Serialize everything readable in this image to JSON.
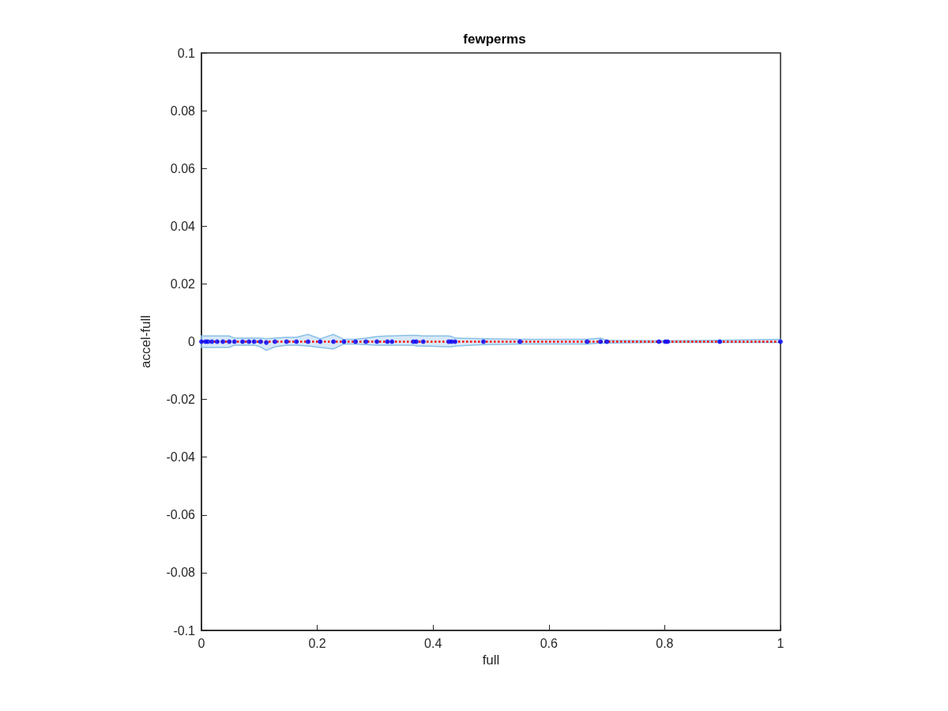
{
  "chart_data": {
    "type": "scatter",
    "title": "fewperms",
    "xlabel": "full",
    "ylabel": "accel-full",
    "x": [
      0,
      0.007,
      0.011,
      0.018,
      0.027,
      0.037,
      0.048,
      0.057,
      0.071,
      0.082,
      0.091,
      0.102,
      0.112,
      0.127,
      0.147,
      0.164,
      0.184,
      0.205,
      0.228,
      0.246,
      0.266,
      0.284,
      0.303,
      0.321,
      0.329,
      0.366,
      0.371,
      0.383,
      0.427,
      0.432,
      0.438,
      0.487,
      0.55,
      0.666,
      0.689,
      0.7,
      0.79,
      0.801,
      0.805,
      0.895,
      1
    ],
    "series": [
      {
        "color": "#0000ff",
        "values": [
          0,
          0,
          0,
          0,
          0,
          0,
          0,
          0,
          0,
          0,
          0,
          0,
          -0.0003,
          0,
          0,
          0,
          0,
          0,
          0,
          0,
          0,
          0,
          0,
          0,
          0,
          0,
          0,
          0,
          0,
          0,
          0,
          0,
          0,
          0,
          0,
          0,
          0,
          0,
          0,
          0,
          0
        ],
        "upper": [
          0.002,
          0.002,
          0.002,
          0.002,
          0.002,
          0.002,
          0.002,
          0.0012,
          0.0012,
          0.0012,
          0.0012,
          0.0012,
          0.001,
          0.0012,
          0.0015,
          0.0015,
          0.0025,
          0.001,
          0.0025,
          0.0008,
          0.0008,
          0.0012,
          0.0018,
          0.002,
          0.002,
          0.0022,
          0.0022,
          0.002,
          0.002,
          0.0018,
          0.0012,
          0.001,
          0.0008,
          0.0008,
          0.0012,
          0.0005,
          0.0003,
          0.0003,
          0.0003,
          0.0005,
          0.0008
        ],
        "lower": [
          -0.002,
          -0.002,
          -0.002,
          -0.002,
          -0.002,
          -0.002,
          -0.002,
          -0.0012,
          -0.0012,
          -0.0012,
          -0.0012,
          -0.0018,
          -0.003,
          -0.0018,
          -0.0012,
          -0.0012,
          -0.0015,
          -0.002,
          -0.0025,
          -0.0008,
          -0.0008,
          -0.001,
          -0.0012,
          -0.0012,
          -0.0012,
          -0.0012,
          -0.0015,
          -0.0015,
          -0.0018,
          -0.0018,
          -0.0015,
          -0.001,
          -0.0008,
          -0.0008,
          -0.0005,
          -0.0005,
          -0.0003,
          -0.0003,
          -0.0003,
          -0.0003,
          -0.0003
        ]
      }
    ],
    "ref_lines": [
      {
        "axis": "y",
        "value": 0,
        "color": "#ff0000",
        "line_style": "dotted"
      }
    ],
    "xlim": [
      0,
      1
    ],
    "xticks": [
      0,
      0.2,
      0.4,
      0.6,
      0.8,
      1
    ],
    "ylim": [
      -0.1,
      0.1
    ],
    "yticks": [
      -0.1,
      -0.08,
      -0.06,
      -0.04,
      -0.02,
      0,
      0.02,
      0.04,
      0.06,
      0.08,
      0.1
    ],
    "grid": false,
    "marker": "circle"
  }
}
